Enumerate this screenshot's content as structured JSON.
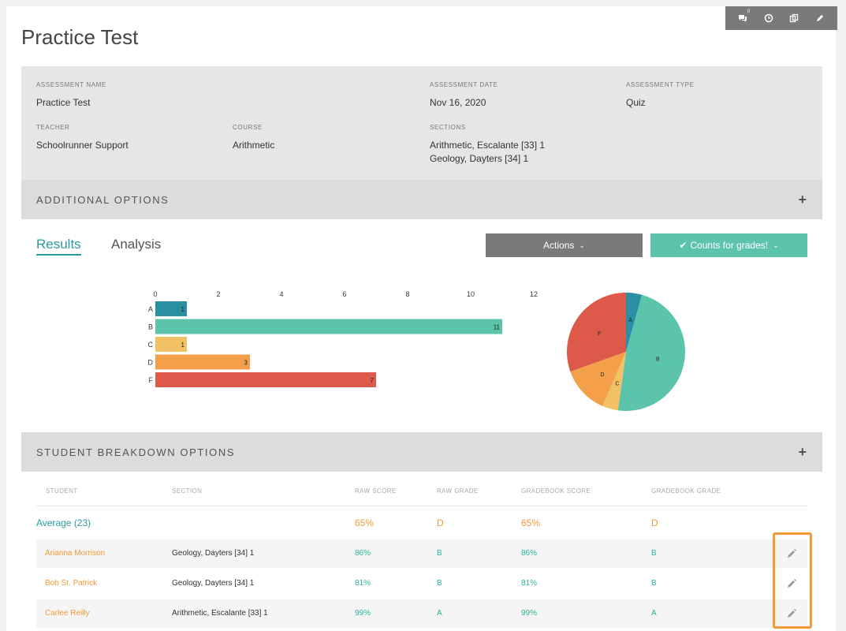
{
  "toolbar": {
    "comments_badge": "0"
  },
  "title": "Practice Test",
  "info": {
    "assessment_name_label": "ASSESSMENT NAME",
    "assessment_name": "Practice Test",
    "assessment_date_label": "ASSESSMENT DATE",
    "assessment_date": "Nov 16, 2020",
    "assessment_type_label": "ASSESSMENT TYPE",
    "assessment_type": "Quiz",
    "teacher_label": "TEACHER",
    "teacher": "Schoolrunner Support",
    "course_label": "COURSE",
    "course": "Arithmetic",
    "sections_label": "SECTIONS",
    "sections": [
      "Arithmetic, Escalante [33] 1",
      "Geology, Dayters [34] 1"
    ]
  },
  "additional_options": "ADDITIONAL OPTIONS",
  "tabs": {
    "results": "Results",
    "analysis": "Analysis"
  },
  "actions_label": "Actions",
  "counts_label": "Counts for grades!",
  "colors": {
    "A": "#2b8fa3",
    "B": "#5cc4ab",
    "C": "#f2c065",
    "D": "#f4a04a",
    "F": "#dd5a4b"
  },
  "chart_data": [
    {
      "type": "bar",
      "orientation": "horizontal",
      "categories": [
        "A",
        "B",
        "C",
        "D",
        "F"
      ],
      "values": [
        1,
        11,
        1,
        3,
        7
      ],
      "xlim": [
        0,
        12
      ],
      "xticks": [
        0,
        2,
        4,
        6,
        8,
        10,
        12
      ]
    },
    {
      "type": "pie",
      "labels": [
        "A",
        "B",
        "C",
        "D",
        "F"
      ],
      "values": [
        1,
        11,
        1,
        3,
        7
      ]
    }
  ],
  "student_breakdown_options": "STUDENT BREAKDOWN OPTIONS",
  "table": {
    "headers": [
      "STUDENT",
      "SECTION",
      "RAW SCORE",
      "RAW GRADE",
      "GRADEBOOK SCORE",
      "GRADEBOOK GRADE"
    ],
    "average": {
      "label": "Average (23)",
      "raw_score": "65%",
      "raw_grade": "D",
      "gb_score": "65%",
      "gb_grade": "D"
    },
    "rows": [
      {
        "name": "Arianna Morrison",
        "section": "Geology, Dayters [34] 1",
        "raw_score": "86%",
        "raw_grade": "B",
        "gb_score": "86%",
        "gb_grade": "B"
      },
      {
        "name": "Bob St. Patrick",
        "section": "Geology, Dayters [34] 1",
        "raw_score": "81%",
        "raw_grade": "B",
        "gb_score": "81%",
        "gb_grade": "B"
      },
      {
        "name": "Carlee Reilly",
        "section": "Arithmetic, Escalante [33] 1",
        "raw_score": "99%",
        "raw_grade": "A",
        "gb_score": "99%",
        "gb_grade": "A"
      }
    ]
  }
}
